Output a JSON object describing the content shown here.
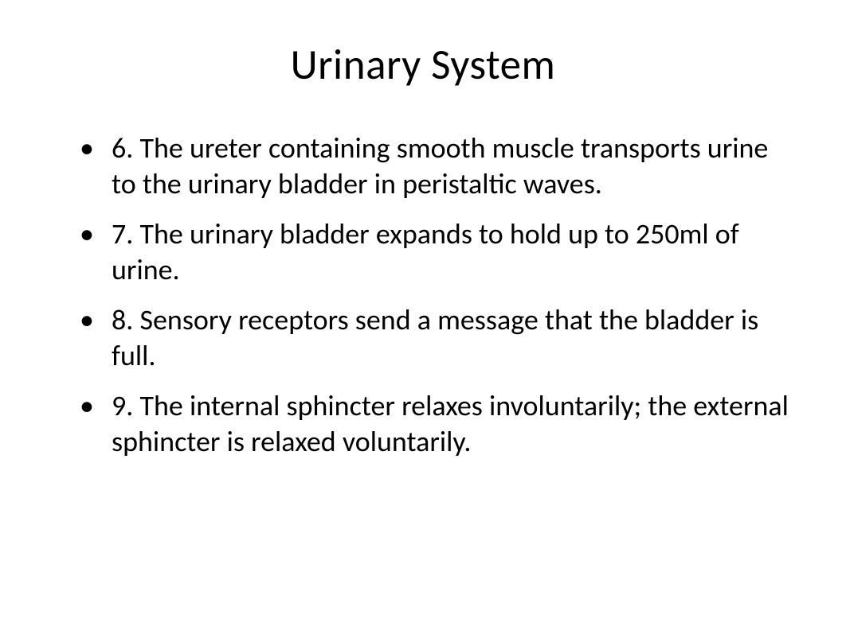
{
  "slide": {
    "title": "Urinary System",
    "bullets": [
      "6.  The ureter containing smooth muscle transports urine to the urinary bladder in peristaltic waves.",
      "7.  The urinary bladder expands to hold up to 250ml of urine.",
      "8.  Sensory receptors send a message that the bladder is full.",
      "9.  The internal sphincter relaxes involuntarily; the external sphincter is relaxed voluntarily."
    ],
    "styling": {
      "background_color": "#ffffff",
      "text_color": "#000000",
      "title_fontsize": 53,
      "title_fontweight": 400,
      "body_fontsize": 36,
      "font_family": "Calibri",
      "bullet_marker": "•",
      "line_height": 1.25
    }
  }
}
